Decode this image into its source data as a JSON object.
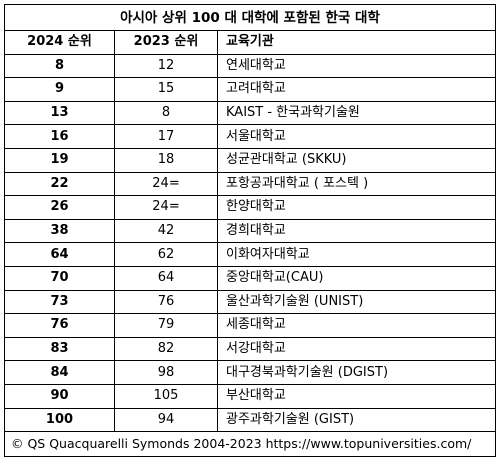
{
  "title": "아시아 상위  100 대 대학에 포함된 한국 대학",
  "headers": {
    "rank_2024": "2024 순위",
    "rank_2023": "2023 순위",
    "institution": "교육기관"
  },
  "rows": [
    {
      "rank_2024": "8",
      "rank_2023": "12",
      "name": "연세대학교"
    },
    {
      "rank_2024": "9",
      "rank_2023": "15",
      "name": "고려대학교"
    },
    {
      "rank_2024": "13",
      "rank_2023": "8",
      "name": "KAIST - 한국과학기술원"
    },
    {
      "rank_2024": "16",
      "rank_2023": "17",
      "name": "서울대학교"
    },
    {
      "rank_2024": "19",
      "rank_2023": "18",
      "name": "성균관대학교 (SKKU)"
    },
    {
      "rank_2024": "22",
      "rank_2023": "24=",
      "name": "포항공과대학교 ( 포스텍 )"
    },
    {
      "rank_2024": "26",
      "rank_2023": "24=",
      "name": "한양대학교"
    },
    {
      "rank_2024": "38",
      "rank_2023": "42",
      "name": "경희대학교"
    },
    {
      "rank_2024": "64",
      "rank_2023": "62",
      "name": "이화여자대학교"
    },
    {
      "rank_2024": "70",
      "rank_2023": "64",
      "name": "중앙대학교(CAU)"
    },
    {
      "rank_2024": "73",
      "rank_2023": "76",
      "name": "울산과학기술원 (UNIST)"
    },
    {
      "rank_2024": "76",
      "rank_2023": "79",
      "name": "세종대학교"
    },
    {
      "rank_2024": "83",
      "rank_2023": "82",
      "name": "서강대학교"
    },
    {
      "rank_2024": "84",
      "rank_2023": "98",
      "name": "대구경북과학기술원 (DGIST)"
    },
    {
      "rank_2024": "90",
      "rank_2023": "105",
      "name": "부산대학교"
    },
    {
      "rank_2024": "100",
      "rank_2023": "94",
      "name": "광주과학기술원 (GIST)"
    }
  ],
  "footer": "© QS Quacquarelli Symonds 2004-2023 https://www.topuniversities.com/"
}
